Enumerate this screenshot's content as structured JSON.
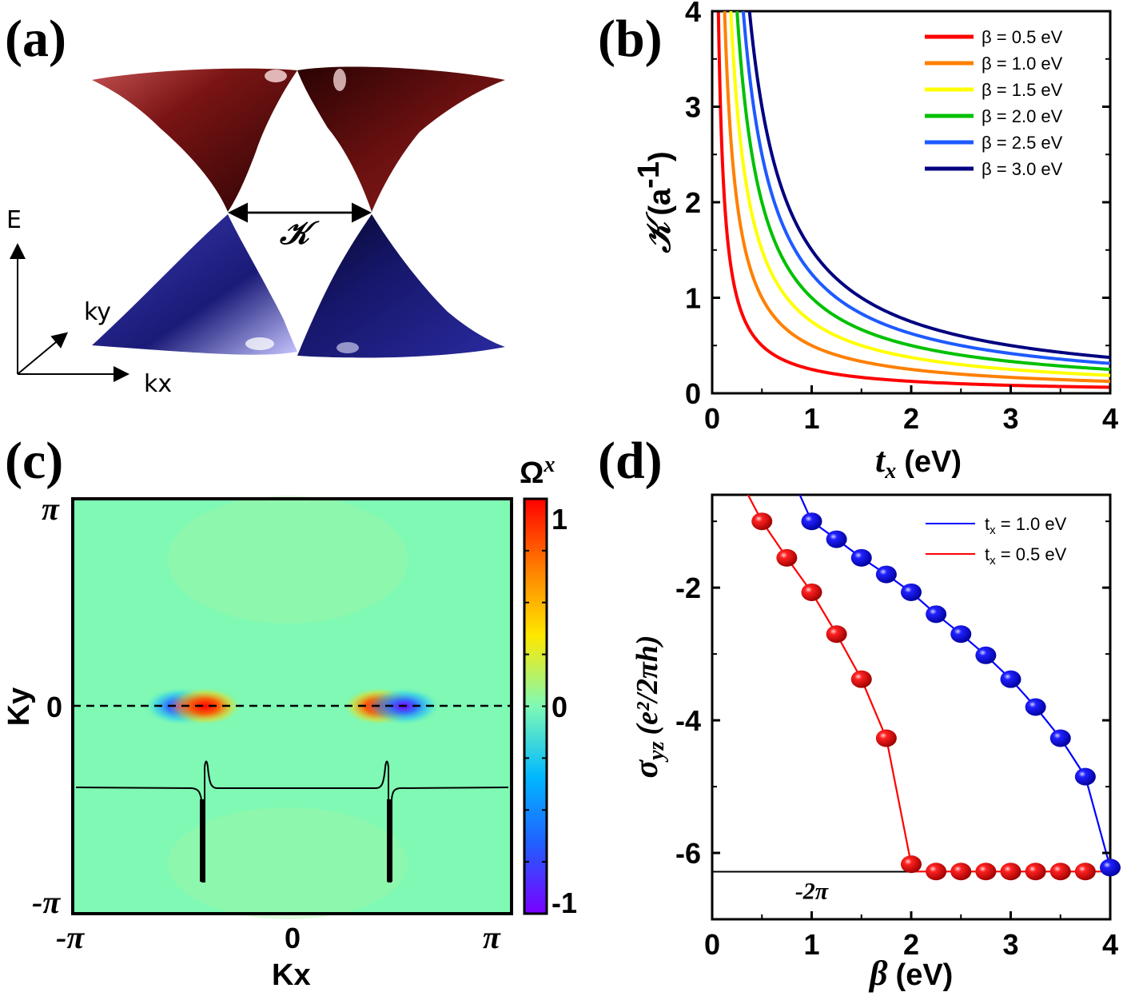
{
  "chart_data": [
    {
      "panel": "(a)",
      "type": "band-structure-3d",
      "annotation": "𝒦",
      "axes_labels": {
        "energy": "E",
        "ky": "ky",
        "kx": "kx"
      },
      "colors": {
        "upper": "#7a1212",
        "lower": "#1c1c82"
      }
    },
    {
      "panel": "(b)",
      "type": "line",
      "xlabel_var": "t",
      "xlabel_sub": "x",
      "xlabel_unit": "(eV)",
      "ylabel_var": "𝒦",
      "ylabel_unit": "(a",
      "ylabel_sup": "-1",
      "ylabel_close": ")",
      "xlim": [
        0,
        4
      ],
      "ylim": [
        0,
        4
      ],
      "xticks": [
        "0",
        "1",
        "2",
        "3",
        "4"
      ],
      "yticks": [
        "0",
        "1",
        "2",
        "3",
        "4"
      ],
      "model": "K = beta / (2 * t_x)",
      "series": [
        {
          "name": "β = 0.5 eV",
          "beta": 0.5,
          "color": "#ff0000"
        },
        {
          "name": "β = 1.0 eV",
          "beta": 1.0,
          "color": "#ff8000"
        },
        {
          "name": "β = 1.5 eV",
          "beta": 1.5,
          "color": "#ffff00"
        },
        {
          "name": "β = 2.0 eV",
          "beta": 2.0,
          "color": "#00c000"
        },
        {
          "name": "β = 2.5 eV",
          "beta": 2.5,
          "color": "#1e5aff"
        },
        {
          "name": "β = 3.0 eV",
          "beta": 3.0,
          "color": "#000080"
        }
      ],
      "legend_position": "top-right"
    },
    {
      "panel": "(c)",
      "type": "heatmap",
      "xlabel": "Kx",
      "ylabel": "Ky",
      "xticks": [
        "-π",
        "0",
        "π"
      ],
      "yticks": [
        "π",
        "0",
        "-π"
      ],
      "colorbar_label": "Ω",
      "colorbar_label_sup": "x",
      "colorbar_ticks": [
        "1",
        "0",
        "-1"
      ],
      "colorbar_range": [
        -1,
        1
      ],
      "colorbar_colors": [
        "#7a00ff",
        "#2060ff",
        "#00b8ff",
        "#7ff9b4",
        "#ffe800",
        "#ff8000",
        "#ff0000"
      ],
      "background_value": 0,
      "hotspots": [
        {
          "kx": -1.6,
          "ky": 0,
          "value": -1
        },
        {
          "kx": -1.25,
          "ky": 0,
          "value": 1
        },
        {
          "kx": 1.25,
          "ky": 0,
          "value": 1
        },
        {
          "kx": 1.6,
          "ky": 0,
          "value": -1
        }
      ],
      "cut_line": "Ky = 0"
    },
    {
      "panel": "(d)",
      "type": "scatter",
      "xlabel_var": "β",
      "xlabel_unit": "(eV)",
      "ylabel_var": "σ",
      "ylabel_sub": "yz",
      "ylabel_unit": "(e²/2πh)",
      "xlim": [
        0,
        4
      ],
      "ylim": [
        -7,
        -0.6
      ],
      "xticks": [
        "0",
        "1",
        "2",
        "3",
        "4"
      ],
      "yticks": [
        "-2",
        "-4",
        "-6"
      ],
      "reference_value": -6.283,
      "reference_label": "-2π",
      "series": [
        {
          "name": "t_x = 1.0 eV",
          "label_main": "t",
          "label_sub": "x",
          "label_rest": " = 1.0 eV",
          "color": "#0000ff",
          "x": [
            1.0,
            1.25,
            1.5,
            1.75,
            2.0,
            2.25,
            2.5,
            2.75,
            3.0,
            3.25,
            3.5,
            3.75,
            4.0
          ],
          "y": [
            -1.0,
            -1.27,
            -1.55,
            -1.8,
            -2.07,
            -2.4,
            -2.7,
            -3.02,
            -3.38,
            -3.8,
            -4.27,
            -4.85,
            -6.22
          ]
        },
        {
          "name": "t_x = 0.5 eV",
          "label_main": "t",
          "label_sub": "x",
          "label_rest": " = 0.5 eV",
          "color": "#ff0000",
          "x": [
            0.5,
            0.75,
            1.0,
            1.25,
            1.5,
            1.75,
            2.0,
            2.25,
            2.5,
            2.75,
            3.0,
            3.25,
            3.5,
            3.75
          ],
          "y": [
            -1.0,
            -1.55,
            -2.07,
            -2.7,
            -3.38,
            -4.27,
            -6.17,
            -6.28,
            -6.28,
            -6.28,
            -6.28,
            -6.28,
            -6.28,
            -6.28
          ]
        }
      ],
      "legend_position": "top-right"
    }
  ]
}
